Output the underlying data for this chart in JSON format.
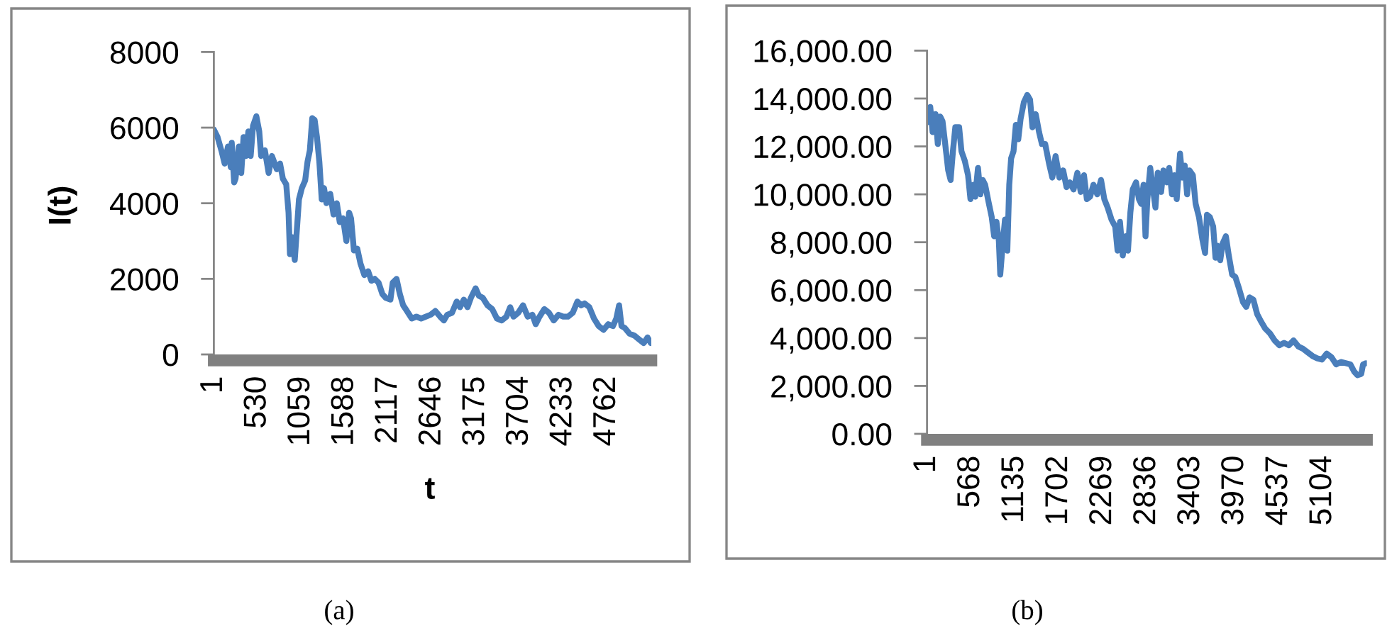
{
  "chart_data": [
    {
      "type": "line",
      "xlabel": "t",
      "ylabel": "I(t)",
      "annotations": [
        "(a)"
      ],
      "color": "#4a7ebb",
      "line_style": "solid",
      "grid": false,
      "xlim": [
        1,
        5300
      ],
      "xticks": [
        1,
        530,
        1059,
        1588,
        2117,
        2646,
        3175,
        3704,
        4233,
        4762
      ],
      "ylim": [
        0,
        8000
      ],
      "yticks": [
        0,
        2000,
        4000,
        6000,
        8000
      ],
      "x": [
        1,
        46,
        92,
        132,
        172,
        206,
        218,
        247,
        264,
        304,
        333,
        361,
        390,
        419,
        447,
        476,
        516,
        551,
        574,
        619,
        665,
        705,
        763,
        803,
        837,
        878,
        906,
        923,
        952,
        981,
        1010,
        1032,
        1067,
        1107,
        1136,
        1164,
        1193,
        1222,
        1250,
        1279,
        1308,
        1336,
        1365,
        1411,
        1451,
        1491,
        1526,
        1566,
        1606,
        1640,
        1663,
        1698,
        1738,
        1778,
        1824,
        1870,
        1910,
        1950,
        1996,
        2042,
        2082,
        2140,
        2168,
        2214,
        2254,
        2294,
        2340,
        2398,
        2455,
        2512,
        2570,
        2627,
        2684,
        2742,
        2788,
        2828,
        2885,
        2943,
        2983,
        3029,
        3074,
        3115,
        3172,
        3212,
        3258,
        3316,
        3373,
        3430,
        3488,
        3545,
        3591,
        3631,
        3688,
        3746,
        3803,
        3860,
        3900,
        3946,
        4004,
        4061,
        4118,
        4176,
        4233,
        4290,
        4348,
        4405,
        4451,
        4491,
        4549,
        4606,
        4663,
        4721,
        4778,
        4835,
        4876,
        4910,
        4939,
        4979,
        5036,
        5094,
        5151,
        5208,
        5254,
        5294
      ],
      "values": [
        5950,
        5750,
        5400,
        5050,
        5500,
        4950,
        5600,
        4550,
        4650,
        5500,
        4800,
        5750,
        5250,
        5900,
        5250,
        6050,
        6300,
        5900,
        5250,
        5400,
        4800,
        5250,
        4900,
        5050,
        4650,
        4500,
        3750,
        2650,
        3100,
        2500,
        3400,
        4100,
        4400,
        4600,
        5100,
        5400,
        6250,
        6200,
        5750,
        5100,
        4100,
        4400,
        4000,
        4250,
        3700,
        4000,
        3500,
        3600,
        3000,
        3750,
        3600,
        2750,
        2800,
        2400,
        2100,
        2200,
        1950,
        2000,
        1900,
        1600,
        1500,
        1450,
        1900,
        2000,
        1600,
        1300,
        1150,
        950,
        1000,
        950,
        1000,
        1050,
        1150,
        1000,
        900,
        1050,
        1100,
        1400,
        1250,
        1450,
        1250,
        1500,
        1750,
        1550,
        1500,
        1300,
        1200,
        950,
        900,
        1000,
        1250,
        1000,
        1100,
        1300,
        1000,
        1050,
        800,
        1000,
        1200,
        1100,
        900,
        1050,
        1000,
        1000,
        1100,
        1400,
        1300,
        1350,
        1250,
        950,
        750,
        650,
        800,
        750,
        950,
        1300,
        750,
        700,
        550,
        500,
        400,
        300,
        450,
        300
      ]
    },
    {
      "type": "line",
      "annotations": [
        "(b)"
      ],
      "color": "#4a7ebb",
      "line_style": "solid",
      "grid": false,
      "xlim": [
        1,
        5670
      ],
      "xticks": [
        1,
        568,
        1135,
        1702,
        2269,
        2836,
        3403,
        3970,
        4537,
        5104
      ],
      "ylim": [
        0,
        16000
      ],
      "yticks": [
        {
          "value": 0,
          "label": "0.00"
        },
        {
          "value": 2000,
          "label": "2,000.00"
        },
        {
          "value": 4000,
          "label": "4,000.00"
        },
        {
          "value": 6000,
          "label": "6,000.00"
        },
        {
          "value": 8000,
          "label": "8,000.00"
        },
        {
          "value": 10000,
          "label": "10,000.00"
        },
        {
          "value": 12000,
          "label": "12,000.00"
        },
        {
          "value": 14000,
          "label": "14,000.00"
        },
        {
          "value": 16000,
          "label": "16,000.00"
        }
      ],
      "x": [
        1,
        43,
        73,
        110,
        140,
        171,
        201,
        232,
        274,
        305,
        335,
        366,
        415,
        445,
        488,
        530,
        561,
        598,
        622,
        658,
        689,
        719,
        750,
        793,
        835,
        866,
        896,
        927,
        945,
        975,
        1006,
        1036,
        1061,
        1085,
        1116,
        1146,
        1177,
        1207,
        1250,
        1293,
        1329,
        1360,
        1402,
        1445,
        1482,
        1524,
        1573,
        1616,
        1658,
        1707,
        1756,
        1799,
        1841,
        1890,
        1939,
        1982,
        2024,
        2061,
        2103,
        2146,
        2195,
        2244,
        2286,
        2329,
        2378,
        2427,
        2457,
        2488,
        2524,
        2561,
        2591,
        2622,
        2652,
        2695,
        2732,
        2762,
        2792,
        2817,
        2841,
        2878,
        2914,
        2945,
        2975,
        3018,
        3048,
        3091,
        3122,
        3158,
        3189,
        3219,
        3262,
        3292,
        3323,
        3353,
        3384,
        3427,
        3463,
        3506,
        3548,
        3585,
        3609,
        3646,
        3689,
        3719,
        3750,
        3780,
        3811,
        3853,
        3890,
        3933,
        3975,
        4024,
        4073,
        4115,
        4158,
        4207,
        4256,
        4304,
        4359,
        4420,
        4481,
        4542,
        4603,
        4664,
        4725,
        4786,
        4847,
        4908,
        4969,
        5030,
        5091,
        5152,
        5213,
        5274,
        5335,
        5396,
        5457,
        5506,
        5548,
        5597,
        5621,
        5658
      ],
      "values": [
        13000,
        13650,
        12600,
        13350,
        12100,
        13250,
        13050,
        12200,
        11000,
        10600,
        11800,
        12800,
        12800,
        11800,
        11400,
        10800,
        9800,
        10400,
        9900,
        11100,
        10000,
        10600,
        10400,
        9700,
        9050,
        8250,
        8850,
        8050,
        6650,
        7850,
        8950,
        7650,
        10400,
        11500,
        11800,
        12900,
        12300,
        13150,
        13850,
        14150,
        13950,
        12800,
        13350,
        12600,
        12100,
        12100,
        11300,
        10700,
        11600,
        10700,
        11000,
        10300,
        10500,
        10200,
        10900,
        10100,
        10800,
        9800,
        9900,
        10400,
        10000,
        10600,
        9800,
        9450,
        8950,
        8650,
        7650,
        8850,
        7450,
        8250,
        7650,
        9250,
        10200,
        10500,
        9800,
        9600,
        10400,
        8250,
        9800,
        11100,
        10200,
        9450,
        10900,
        10100,
        11000,
        10500,
        11100,
        10000,
        10800,
        9800,
        11700,
        10700,
        11200,
        10000,
        11000,
        10800,
        9600,
        9050,
        8150,
        7550,
        9150,
        9050,
        8650,
        7350,
        7850,
        7250,
        7950,
        8250,
        7450,
        6650,
        6550,
        6050,
        5500,
        5300,
        5700,
        5600,
        5000,
        4700,
        4400,
        4200,
        3900,
        3700,
        3800,
        3700,
        3900,
        3650,
        3550,
        3400,
        3250,
        3150,
        3100,
        3350,
        3200,
        2900,
        3000,
        2950,
        2900,
        2600,
        2450,
        2500,
        2900,
        2950
      ]
    }
  ]
}
